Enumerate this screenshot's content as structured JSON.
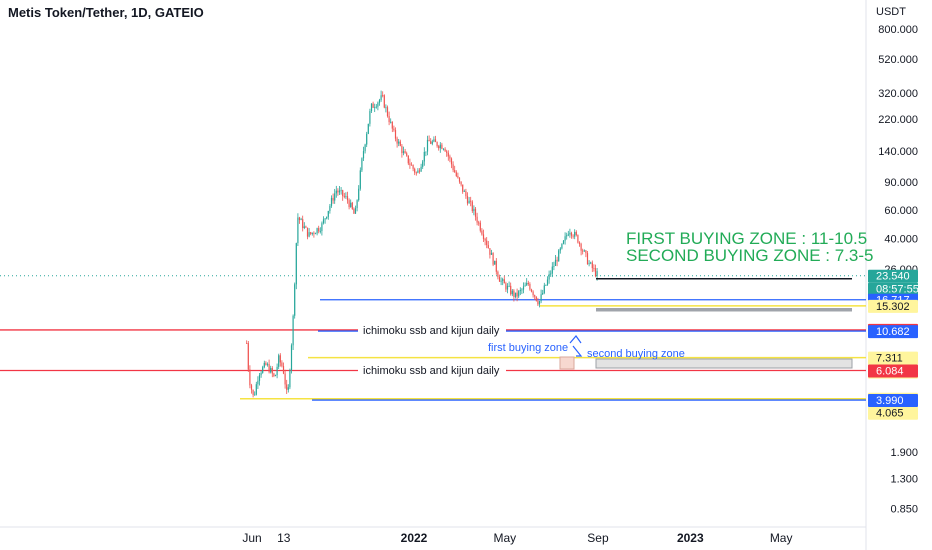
{
  "header": {
    "title": "Metis Token/Tether, 1D, GATEIO",
    "currency": "USDT"
  },
  "chart_data": {
    "type": "candlestick",
    "title": "Metis Token/Tether, 1D, GATEIO",
    "y_unit": "USDT",
    "log_scale": true,
    "ylim": [
      0.7,
      1000
    ],
    "y_ticks": [
      "800.000",
      "520.000",
      "320.000",
      "220.000",
      "140.000",
      "90.000",
      "60.000",
      "40.000",
      "26.000",
      "1.900",
      "1.300",
      "0.850"
    ],
    "x_ticks": [
      "Jun",
      "13",
      "2022",
      "May",
      "Sep",
      "2023",
      "May"
    ],
    "x_ticks_bold": [
      "2022",
      "2023"
    ],
    "price_path": [
      [
        "2021-05-25",
        9.0
      ],
      [
        "2021-05-28",
        5.5
      ],
      [
        "2021-06-03",
        4.1
      ],
      [
        "2021-06-10",
        5.9
      ],
      [
        "2021-06-20",
        6.6
      ],
      [
        "2021-06-25",
        6.1
      ],
      [
        "2021-07-01",
        5.4
      ],
      [
        "2021-07-06",
        7.2
      ],
      [
        "2021-07-12",
        6.3
      ],
      [
        "2021-07-18",
        4.0
      ],
      [
        "2021-07-25",
        12.0
      ],
      [
        "2021-07-31",
        55.0
      ],
      [
        "2021-08-15",
        42.0
      ],
      [
        "2021-09-01",
        48.0
      ],
      [
        "2021-09-20",
        80.0
      ],
      [
        "2021-10-05",
        70.0
      ],
      [
        "2021-10-15",
        55.0
      ],
      [
        "2021-10-25",
        130.0
      ],
      [
        "2021-11-05",
        260.0
      ],
      [
        "2021-11-20",
        300.0
      ],
      [
        "2021-12-05",
        180.0
      ],
      [
        "2021-12-20",
        130.0
      ],
      [
        "2022-01-05",
        100.0
      ],
      [
        "2022-01-20",
        160.0
      ],
      [
        "2022-02-10",
        150.0
      ],
      [
        "2022-03-01",
        90.0
      ],
      [
        "2022-03-20",
        60.0
      ],
      [
        "2022-04-05",
        40.0
      ],
      [
        "2022-04-25",
        22.0
      ],
      [
        "2022-05-15",
        17.5
      ],
      [
        "2022-06-01",
        21.0
      ],
      [
        "2022-06-15",
        16.0
      ],
      [
        "2022-07-01",
        25.0
      ],
      [
        "2022-07-15",
        35.0
      ],
      [
        "2022-07-25",
        46.0
      ],
      [
        "2022-08-05",
        40.0
      ],
      [
        "2022-08-20",
        28.0
      ],
      [
        "2022-09-01",
        23.5
      ]
    ],
    "levels": [
      {
        "value": 16.717,
        "color": "#2962ff",
        "label": "16.717"
      },
      {
        "value": 15.302,
        "color": "#f5e342",
        "label": "15.302"
      },
      {
        "value": 10.86,
        "color": "#f23645",
        "label": "10.860"
      },
      {
        "value": 10.682,
        "color": "#2962ff",
        "label": "10.682"
      },
      {
        "value": 7.311,
        "color": "#f5e342",
        "label": "7.311"
      },
      {
        "value": 6.084,
        "color": "#f23645",
        "label": "6.084"
      },
      {
        "value": 4.065,
        "color": "#f5e342",
        "label": "4.065"
      },
      {
        "value": 3.99,
        "color": "#2962ff",
        "label": "3.990"
      }
    ],
    "price_tag": {
      "value": 23.54,
      "label": "23.540",
      "countdown": "08:57:55",
      "color": "#26a69a"
    },
    "yellow_tags": [
      "15.302",
      "7.311",
      "7.311",
      "4.065",
      "4.065"
    ]
  },
  "annotations": {
    "ichimoku_1": "ichimoku ssb and kijun daily",
    "ichimoku_2": "ichimoku ssb and kijun daily",
    "first_buying": "first buying zone",
    "second_buying": "second buying zone",
    "zone_line_1": "FIRST BUYING ZONE : 11-10.5",
    "zone_line_2": "SECOND BUYING ZONE : 7.3-5"
  },
  "colors": {
    "up": "#26a69a",
    "down": "#ef5350",
    "blue": "#2962ff",
    "red": "#f23645",
    "yellow": "#f5e342",
    "zone_text": "#22ab57",
    "annotation_blue": "#2962ff"
  }
}
